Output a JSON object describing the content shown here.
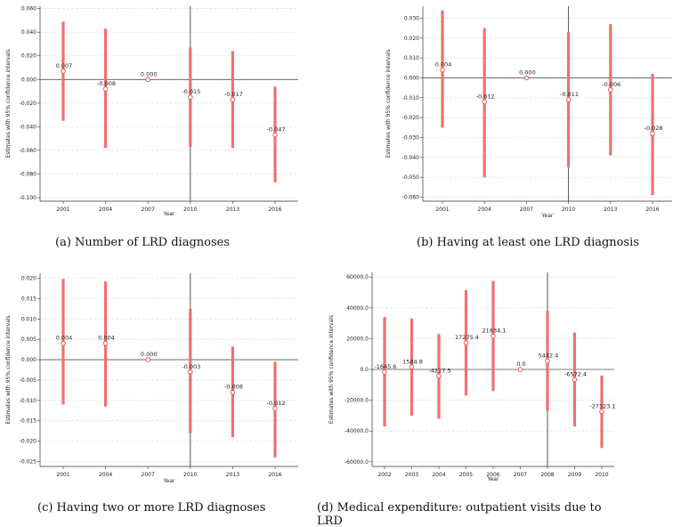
{
  "colors": {
    "ci": "#f07070",
    "marker": "#e05050",
    "zero": "#555555",
    "vline": "#555555",
    "grid": "#d8d8d8"
  },
  "chart_data": [
    {
      "type": "scatter",
      "caption": "(a) Number of LRD diagnoses",
      "xlabel": "Year",
      "ylabel": "Estimates with 95% confidence intervals",
      "x": [
        "2001",
        "2004",
        "2007",
        "2010",
        "2013",
        "2016"
      ],
      "estimates": [
        0.007,
        -0.008,
        0.0,
        -0.015,
        -0.017,
        -0.047
      ],
      "ci_low": [
        -0.035,
        -0.058,
        0.0,
        -0.057,
        -0.058,
        -0.087
      ],
      "ci_high": [
        0.049,
        0.043,
        0.0,
        0.027,
        0.024,
        -0.006
      ],
      "point_labels": [
        "0.007",
        "-0.008",
        "0.000",
        "-0.015",
        "-0.017",
        "-0.047"
      ],
      "yticks": [
        0.06,
        0.04,
        0.02,
        0.0,
        -0.02,
        -0.04,
        -0.06,
        -0.08,
        -0.1
      ],
      "ytick_labels": [
        "0.060",
        "0.040",
        "0.020",
        "0.000",
        "-0.020",
        "-0.040",
        "-0.060",
        "-0.080",
        "-0.100"
      ],
      "ylim": [
        -0.103,
        0.062
      ],
      "vline_x": "2010",
      "grid": true
    },
    {
      "type": "scatter",
      "caption": "(b) Having at least one LRD diagnosis",
      "xlabel": "Year",
      "ylabel": "Estimates with 95% confidence intervals",
      "x": [
        "2001",
        "2004",
        "2007",
        "2010",
        "2013",
        "2016"
      ],
      "estimates": [
        0.004,
        -0.012,
        0.0,
        -0.011,
        -0.006,
        -0.028
      ],
      "ci_low": [
        -0.025,
        -0.05,
        0.0,
        -0.045,
        -0.039,
        -0.059
      ],
      "ci_high": [
        0.034,
        0.025,
        0.0,
        0.023,
        0.027,
        0.002
      ],
      "point_labels": [
        "0.004",
        "-0.012",
        "0.000",
        "-0.011",
        "-0.006",
        "-0.028"
      ],
      "yticks": [
        0.03,
        0.02,
        0.01,
        0.0,
        -0.01,
        -0.02,
        -0.03,
        -0.04,
        -0.05,
        -0.06
      ],
      "ytick_labels": [
        "0.030",
        "0.020",
        "0.010",
        "0.000",
        "-0.010",
        "-0.020",
        "-0.030",
        "-0.040",
        "-0.050",
        "-0.060"
      ],
      "ylim": [
        -0.062,
        0.036
      ],
      "vline_x": "2010",
      "grid": true
    },
    {
      "type": "scatter",
      "caption": "(c) Having two or more LRD diagnoses",
      "xlabel": "Year",
      "ylabel": "Estimates with 95% confidence intervals",
      "x": [
        "2001",
        "2004",
        "2007",
        "2010",
        "2013",
        "2016"
      ],
      "estimates": [
        0.004,
        0.004,
        0.0,
        -0.003,
        -0.008,
        -0.012
      ],
      "ci_low": [
        -0.011,
        -0.0115,
        0.0,
        -0.018,
        -0.019,
        -0.024
      ],
      "ci_high": [
        0.0198,
        0.0192,
        0.0,
        0.0125,
        0.0032,
        -0.0005
      ],
      "point_labels": [
        "0.004",
        "0.004",
        "0.000",
        "-0.003",
        "-0.008",
        "-0.012"
      ],
      "yticks": [
        0.02,
        0.015,
        0.01,
        0.005,
        0.0,
        -0.005,
        -0.01,
        -0.015,
        -0.02,
        -0.025
      ],
      "ytick_labels": [
        "0.020",
        "0.015",
        "0.010",
        "0.005",
        "0.000",
        "-0.005",
        "-0.010",
        "-0.015",
        "-0.020",
        "-0.025"
      ],
      "ylim": [
        -0.0262,
        0.0212
      ],
      "vline_x": "2010",
      "grid": true
    },
    {
      "type": "scatter",
      "caption": "(d) Medical expenditure: outpatient visits due to LRD",
      "xlabel": "Year",
      "ylabel": "Estimates with 95% confidence intervals",
      "x": [
        "2002",
        "2003",
        "2004",
        "2005",
        "2006",
        "2007",
        "2008",
        "2009",
        "2010"
      ],
      "estimates": [
        -1645.6,
        1584.8,
        -4217.5,
        17275.4,
        21634.1,
        0.0,
        5442.4,
        -6572.4,
        -27323.1
      ],
      "ci_low": [
        -37000,
        -30000,
        -32000,
        -17000,
        -14000,
        0.0,
        -27000,
        -37000,
        -51000
      ],
      "ci_high": [
        34000,
        33000,
        23000,
        51500,
        57500,
        0.0,
        38000,
        24000,
        -4000
      ],
      "point_labels": [
        "-1645.6",
        "1584.8",
        "-4217.5",
        "17275.4",
        "21634.1",
        "0.0",
        "5442.4",
        "-6572.4",
        "-27323.1"
      ],
      "yticks": [
        60000,
        40000,
        20000,
        0,
        -20000,
        -40000,
        -60000
      ],
      "ytick_labels": [
        "60000.0",
        "40000.0",
        "20000.0",
        "0.0",
        "-20000.0",
        "-40000.0",
        "-60000.0"
      ],
      "ylim": [
        -63000,
        63000
      ],
      "vline_x": "2008",
      "grid": true
    }
  ]
}
